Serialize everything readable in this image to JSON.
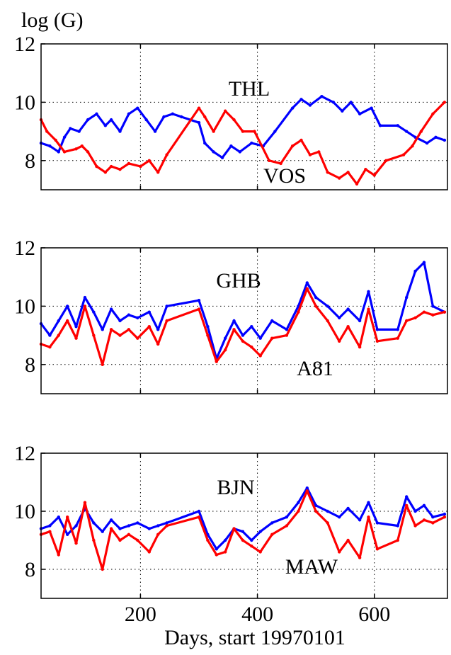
{
  "figure": {
    "ylabel": "log (G)",
    "xlabel": "Days, start 19970101"
  },
  "chart_data": [
    {
      "type": "line",
      "ylim": [
        7,
        12
      ],
      "xlim": [
        30,
        725
      ],
      "xticks": [
        200,
        400,
        600
      ],
      "yticks": [
        8,
        10,
        12
      ],
      "grid": true,
      "labels": [
        "THL",
        "VOS"
      ],
      "series": [
        {
          "name": "THL",
          "color": "#0000ff",
          "x": [
            30,
            45,
            60,
            70,
            80,
            95,
            110,
            125,
            140,
            150,
            165,
            180,
            195,
            210,
            225,
            240,
            255,
            270,
            300,
            310,
            325,
            340,
            355,
            370,
            390,
            410,
            430,
            460,
            475,
            490,
            510,
            530,
            545,
            560,
            575,
            595,
            610,
            640,
            655,
            670,
            690,
            705,
            720
          ],
          "y": [
            8.6,
            8.5,
            8.3,
            8.8,
            9.1,
            9.0,
            9.4,
            9.6,
            9.2,
            9.4,
            9.0,
            9.6,
            9.8,
            9.4,
            9.0,
            9.5,
            9.6,
            9.5,
            9.3,
            8.6,
            8.3,
            8.1,
            8.5,
            8.3,
            8.6,
            8.5,
            9.0,
            9.8,
            10.1,
            9.9,
            10.2,
            10.0,
            9.7,
            10.0,
            9.6,
            9.8,
            9.2,
            9.2,
            9.0,
            8.8,
            8.6,
            8.8,
            8.7
          ]
        },
        {
          "name": "VOS",
          "color": "#ff0000",
          "x": [
            30,
            40,
            55,
            70,
            90,
            100,
            110,
            125,
            140,
            150,
            165,
            180,
            200,
            215,
            230,
            245,
            300,
            310,
            325,
            345,
            360,
            375,
            395,
            420,
            440,
            460,
            475,
            490,
            505,
            520,
            540,
            555,
            570,
            585,
            600,
            620,
            650,
            665,
            680,
            700,
            720
          ],
          "y": [
            9.4,
            9.0,
            8.7,
            8.3,
            8.4,
            8.5,
            8.3,
            7.8,
            7.6,
            7.8,
            7.7,
            7.9,
            7.8,
            8.0,
            7.6,
            8.2,
            9.8,
            9.5,
            9.0,
            9.7,
            9.4,
            9.0,
            9.0,
            8.0,
            7.9,
            8.5,
            8.7,
            8.2,
            8.3,
            7.6,
            7.4,
            7.6,
            7.2,
            7.7,
            7.5,
            8.0,
            8.2,
            8.5,
            9.0,
            9.6,
            10.0
          ]
        }
      ]
    },
    {
      "type": "line",
      "ylim": [
        7,
        12
      ],
      "xlim": [
        30,
        725
      ],
      "xticks": [
        200,
        400,
        600
      ],
      "yticks": [
        8,
        10,
        12
      ],
      "grid": true,
      "labels": [
        "GHB",
        "A81"
      ],
      "series": [
        {
          "name": "GHB",
          "color": "#0000ff",
          "x": [
            30,
            45,
            60,
            75,
            90,
            105,
            120,
            135,
            150,
            165,
            180,
            195,
            215,
            230,
            245,
            300,
            315,
            330,
            345,
            360,
            375,
            390,
            405,
            425,
            450,
            470,
            485,
            500,
            520,
            540,
            555,
            575,
            590,
            605,
            640,
            655,
            670,
            685,
            700,
            720
          ],
          "y": [
            9.4,
            9.0,
            9.5,
            10.0,
            9.3,
            10.3,
            9.8,
            9.2,
            9.9,
            9.5,
            9.7,
            9.6,
            9.8,
            9.2,
            10.0,
            10.2,
            9.3,
            8.2,
            8.9,
            9.5,
            9.0,
            9.3,
            8.9,
            9.5,
            9.2,
            10.0,
            10.8,
            10.3,
            10.0,
            9.6,
            9.9,
            9.5,
            10.5,
            9.2,
            9.2,
            10.3,
            11.2,
            11.5,
            10.0,
            9.8
          ]
        },
        {
          "name": "A81",
          "color": "#ff0000",
          "x": [
            30,
            45,
            60,
            75,
            90,
            105,
            120,
            135,
            150,
            165,
            180,
            195,
            215,
            230,
            245,
            300,
            315,
            330,
            345,
            360,
            375,
            390,
            405,
            425,
            450,
            470,
            485,
            500,
            520,
            540,
            555,
            575,
            590,
            605,
            640,
            655,
            670,
            685,
            700,
            720
          ],
          "y": [
            8.7,
            8.6,
            9.0,
            9.5,
            8.9,
            10.0,
            9.0,
            8.0,
            9.2,
            9.0,
            9.2,
            8.9,
            9.3,
            8.7,
            9.5,
            9.9,
            9.0,
            8.1,
            8.5,
            9.2,
            8.8,
            8.6,
            8.3,
            8.9,
            9.0,
            9.8,
            10.6,
            10.0,
            9.5,
            8.8,
            9.3,
            8.6,
            9.9,
            8.8,
            8.9,
            9.5,
            9.6,
            9.8,
            9.7,
            9.8
          ]
        }
      ]
    },
    {
      "type": "line",
      "ylim": [
        7,
        12
      ],
      "xlim": [
        30,
        725
      ],
      "xticks": [
        200,
        400,
        600
      ],
      "yticks": [
        8,
        10,
        12
      ],
      "grid": true,
      "labels": [
        "BJN",
        "MAW"
      ],
      "series": [
        {
          "name": "BJN",
          "color": "#0000ff",
          "x": [
            30,
            45,
            60,
            75,
            90,
            105,
            120,
            135,
            150,
            165,
            180,
            195,
            215,
            230,
            245,
            300,
            315,
            330,
            345,
            360,
            375,
            390,
            405,
            425,
            450,
            470,
            485,
            500,
            520,
            540,
            555,
            575,
            590,
            605,
            640,
            655,
            670,
            685,
            700,
            720
          ],
          "y": [
            9.4,
            9.5,
            9.8,
            9.2,
            9.5,
            10.1,
            9.6,
            9.3,
            9.7,
            9.4,
            9.5,
            9.6,
            9.4,
            9.5,
            9.6,
            10.0,
            9.2,
            8.7,
            9.0,
            9.4,
            9.3,
            9.0,
            9.3,
            9.6,
            9.8,
            10.3,
            10.8,
            10.2,
            10.0,
            9.8,
            10.1,
            9.7,
            10.3,
            9.6,
            9.5,
            10.5,
            10.0,
            10.2,
            9.8,
            9.9
          ]
        },
        {
          "name": "MAW",
          "color": "#ff0000",
          "x": [
            30,
            45,
            60,
            75,
            90,
            105,
            120,
            135,
            150,
            165,
            180,
            195,
            215,
            230,
            245,
            300,
            315,
            330,
            345,
            360,
            375,
            390,
            405,
            425,
            450,
            470,
            485,
            500,
            520,
            540,
            555,
            575,
            590,
            605,
            640,
            655,
            670,
            685,
            700,
            720
          ],
          "y": [
            9.2,
            9.3,
            8.5,
            9.8,
            8.9,
            10.3,
            9.0,
            8.0,
            9.4,
            9.0,
            9.2,
            9.0,
            8.6,
            9.2,
            9.5,
            9.8,
            9.0,
            8.5,
            8.6,
            9.4,
            9.0,
            8.8,
            8.6,
            9.2,
            9.5,
            10.0,
            10.7,
            10.0,
            9.6,
            8.6,
            9.0,
            8.4,
            9.8,
            8.7,
            9.0,
            10.2,
            9.5,
            9.7,
            9.6,
            9.8
          ]
        }
      ]
    }
  ]
}
